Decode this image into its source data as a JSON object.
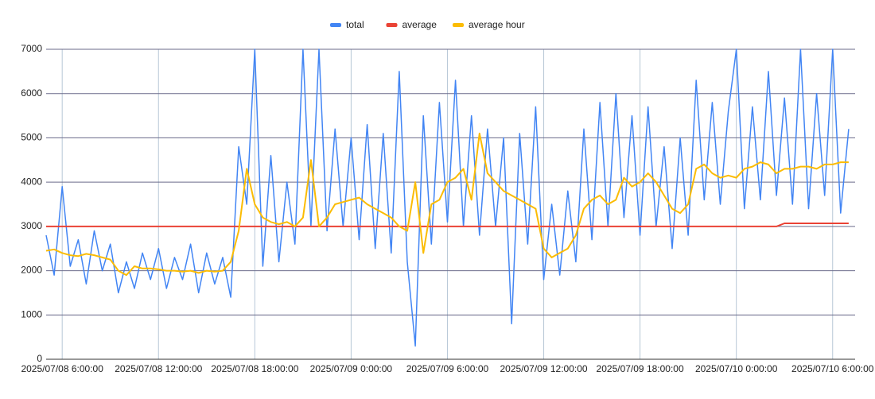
{
  "chart_data": {
    "type": "line",
    "x": [
      "2025/07/08 5:00:00",
      "2025/07/08 5:30:00",
      "2025/07/08 6:00:00",
      "2025/07/08 6:30:00",
      "2025/07/08 7:00:00",
      "2025/07/08 7:30:00",
      "2025/07/08 8:00:00",
      "2025/07/08 8:30:00",
      "2025/07/08 9:00:00",
      "2025/07/08 9:30:00",
      "2025/07/08 10:00:00",
      "2025/07/08 10:30:00",
      "2025/07/08 11:00:00",
      "2025/07/08 11:30:00",
      "2025/07/08 12:00:00",
      "2025/07/08 12:30:00",
      "2025/07/08 13:00:00",
      "2025/07/08 13:30:00",
      "2025/07/08 14:00:00",
      "2025/07/08 14:30:00",
      "2025/07/08 15:00:00",
      "2025/07/08 15:30:00",
      "2025/07/08 16:00:00",
      "2025/07/08 16:30:00",
      "2025/07/08 17:00:00",
      "2025/07/08 17:30:00",
      "2025/07/08 18:00:00",
      "2025/07/08 18:30:00",
      "2025/07/08 19:00:00",
      "2025/07/08 19:30:00",
      "2025/07/08 20:00:00",
      "2025/07/08 20:30:00",
      "2025/07/08 21:00:00",
      "2025/07/08 21:30:00",
      "2025/07/08 22:00:00",
      "2025/07/08 22:30:00",
      "2025/07/08 23:00:00",
      "2025/07/08 23:30:00",
      "2025/07/09 0:00:00",
      "2025/07/09 0:30:00",
      "2025/07/09 1:00:00",
      "2025/07/09 1:30:00",
      "2025/07/09 2:00:00",
      "2025/07/09 2:30:00",
      "2025/07/09 3:00:00",
      "2025/07/09 3:30:00",
      "2025/07/09 4:00:00",
      "2025/07/09 4:30:00",
      "2025/07/09 5:00:00",
      "2025/07/09 5:30:00",
      "2025/07/09 6:00:00",
      "2025/07/09 6:30:00",
      "2025/07/09 7:00:00",
      "2025/07/09 7:30:00",
      "2025/07/09 8:00:00",
      "2025/07/09 8:30:00",
      "2025/07/09 9:00:00",
      "2025/07/09 9:30:00",
      "2025/07/09 10:00:00",
      "2025/07/09 10:30:00",
      "2025/07/09 11:00:00",
      "2025/07/09 11:30:00",
      "2025/07/09 12:00:00",
      "2025/07/09 12:30:00",
      "2025/07/09 13:00:00",
      "2025/07/09 13:30:00",
      "2025/07/09 14:00:00",
      "2025/07/09 14:30:00",
      "2025/07/09 15:00:00",
      "2025/07/09 15:30:00",
      "2025/07/09 16:00:00",
      "2025/07/09 16:30:00",
      "2025/07/09 17:00:00",
      "2025/07/09 17:30:00",
      "2025/07/09 18:00:00",
      "2025/07/09 18:30:00",
      "2025/07/09 19:00:00",
      "2025/07/09 19:30:00",
      "2025/07/09 20:00:00",
      "2025/07/09 20:30:00",
      "2025/07/09 21:00:00",
      "2025/07/09 21:30:00",
      "2025/07/09 22:00:00",
      "2025/07/09 22:30:00",
      "2025/07/09 23:00:00",
      "2025/07/09 23:30:00",
      "2025/07/10 0:00:00",
      "2025/07/10 0:30:00",
      "2025/07/10 1:00:00",
      "2025/07/10 1:30:00",
      "2025/07/10 2:00:00",
      "2025/07/10 2:30:00",
      "2025/07/10 3:00:00",
      "2025/07/10 3:30:00",
      "2025/07/10 4:00:00",
      "2025/07/10 4:30:00",
      "2025/07/10 5:00:00",
      "2025/07/10 5:30:00",
      "2025/07/10 6:00:00",
      "2025/07/10 6:30:00",
      "2025/07/10 7:00:00"
    ],
    "series": [
      {
        "name": "total",
        "color": "#4285f4",
        "values": [
          2800,
          1900,
          3900,
          2100,
          2700,
          1700,
          2900,
          2000,
          2600,
          1500,
          2200,
          1600,
          2400,
          1800,
          2500,
          1600,
          2300,
          1800,
          2600,
          1500,
          2400,
          1700,
          2300,
          1400,
          4800,
          3500,
          7000,
          2100,
          4600,
          2200,
          4000,
          2600,
          7000,
          3000,
          7000,
          2900,
          5200,
          3000,
          5000,
          2700,
          5300,
          2500,
          5100,
          2400,
          6500,
          2200,
          300,
          5500,
          2600,
          5800,
          3100,
          6300,
          3000,
          5500,
          2800,
          5200,
          3000,
          5000,
          800,
          5100,
          2600,
          5700,
          1800,
          3500,
          1900,
          3800,
          2200,
          5200,
          2700,
          5800,
          3000,
          6000,
          3200,
          5500,
          2800,
          5700,
          3000,
          4800,
          2500,
          5000,
          2800,
          6300,
          3600,
          5800,
          3500,
          5600,
          7000,
          3400,
          5700,
          3600,
          6500,
          3700,
          5900,
          3500,
          7000,
          3400,
          6000,
          3700,
          7000,
          3300,
          5200
        ]
      },
      {
        "name": "average",
        "color": "#ea4335",
        "values": [
          3000,
          3000,
          3000,
          3000,
          3000,
          3000,
          3000,
          3000,
          3000,
          3000,
          3000,
          3000,
          3000,
          3000,
          3000,
          3000,
          3000,
          3000,
          3000,
          3000,
          3000,
          3000,
          3000,
          3000,
          3000,
          3000,
          3000,
          3000,
          3000,
          3000,
          3000,
          3000,
          3000,
          3000,
          3000,
          3000,
          3000,
          3000,
          3000,
          3000,
          3000,
          3000,
          3000,
          3000,
          3000,
          3000,
          3000,
          3000,
          3000,
          3000,
          3000,
          3000,
          3000,
          3000,
          3000,
          3000,
          3000,
          3000,
          3000,
          3000,
          3000,
          3000,
          3000,
          3000,
          3000,
          3000,
          3000,
          3000,
          3000,
          3000,
          3000,
          3000,
          3000,
          3000,
          3000,
          3000,
          3000,
          3000,
          3000,
          3000,
          3000,
          3000,
          3000,
          3000,
          3000,
          3000,
          3000,
          3000,
          3000,
          3000,
          3000,
          3000,
          3070,
          3070,
          3070,
          3070,
          3070,
          3070,
          3070,
          3070,
          3070
        ]
      },
      {
        "name": "average hour",
        "color": "#fbbc04",
        "values": [
          2450,
          2480,
          2400,
          2350,
          2330,
          2380,
          2350,
          2300,
          2250,
          2000,
          1900,
          2100,
          2050,
          2050,
          2030,
          2000,
          2000,
          1980,
          2000,
          1950,
          2000,
          1980,
          2000,
          2200,
          2900,
          4300,
          3500,
          3200,
          3100,
          3050,
          3100,
          3000,
          3200,
          4500,
          3000,
          3200,
          3500,
          3550,
          3600,
          3650,
          3500,
          3400,
          3300,
          3200,
          3000,
          2900,
          4000,
          2400,
          3500,
          3600,
          4000,
          4100,
          4300,
          3600,
          5100,
          4200,
          4000,
          3800,
          3700,
          3600,
          3500,
          3400,
          2500,
          2300,
          2400,
          2500,
          2800,
          3400,
          3600,
          3700,
          3500,
          3600,
          4100,
          3900,
          4000,
          4200,
          4000,
          3700,
          3400,
          3300,
          3500,
          4300,
          4400,
          4200,
          4100,
          4150,
          4100,
          4300,
          4350,
          4450,
          4400,
          4200,
          4300,
          4300,
          4350,
          4350,
          4300,
          4400,
          4400,
          4450,
          4450
        ]
      }
    ],
    "xlim": [
      "2025/07/08 5:00:00",
      "2025/07/10 7:24:00"
    ],
    "xticks": [
      "2025/07/08 6:00:00",
      "2025/07/08 12:00:00",
      "2025/07/08 18:00:00",
      "2025/07/09 0:00:00",
      "2025/07/09 6:00:00",
      "2025/07/09 12:00:00",
      "2025/07/09 18:00:00",
      "2025/07/10 0:00:00",
      "2025/07/10 6:00:00"
    ],
    "ylim": [
      0,
      7000
    ],
    "yticks": [
      0,
      1000,
      2000,
      3000,
      4000,
      5000,
      6000,
      7000
    ],
    "grid": true,
    "legend": "top"
  }
}
